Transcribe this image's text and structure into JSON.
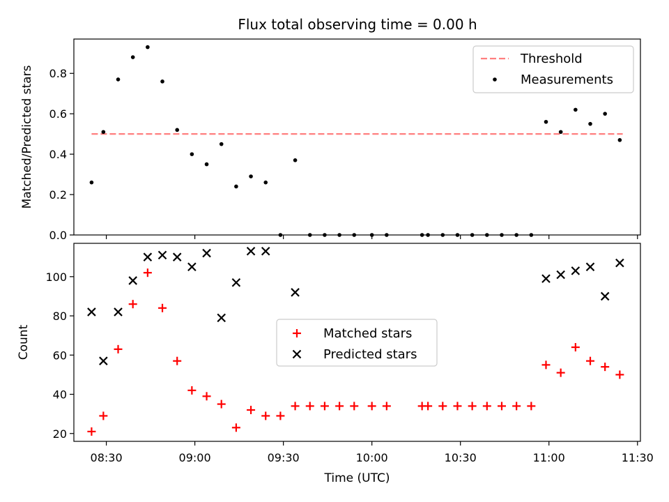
{
  "figure": {
    "title": "Flux total observing time = 0.00 h"
  },
  "colors": {
    "threshold": "#ff7f7f",
    "measurements": "#000000",
    "matched": "#ff0000",
    "predicted": "#000000"
  },
  "chart_data": [
    {
      "type": "scatter",
      "title": "Flux total observing time = 0.00 h",
      "xlabel": "",
      "ylabel": "Matched/Predicted stars",
      "xlim": [
        "08:19",
        "11:31"
      ],
      "ylim": [
        0,
        0.97
      ],
      "yticks": [
        0.0,
        0.2,
        0.4,
        0.6,
        0.8
      ],
      "grid": false,
      "legend_position": "upper right",
      "legend": [
        "Threshold",
        "Measurements"
      ],
      "threshold": {
        "name": "Threshold",
        "value": 0.5,
        "x": [
          "08:25",
          "11:25"
        ]
      },
      "series": [
        {
          "name": "Measurements",
          "x": [
            "08:25",
            "08:29",
            "08:34",
            "08:39",
            "08:44",
            "08:49",
            "08:54",
            "08:59",
            "09:04",
            "09:09",
            "09:14",
            "09:19",
            "09:24",
            "09:29",
            "09:34",
            "09:39",
            "09:44",
            "09:49",
            "09:54",
            "10:00",
            "10:05",
            "10:17",
            "10:19",
            "10:24",
            "10:29",
            "10:34",
            "10:39",
            "10:44",
            "10:49",
            "10:54",
            "10:59",
            "11:04",
            "11:09",
            "11:14",
            "11:19",
            "11:24"
          ],
          "values": [
            0.26,
            0.51,
            0.77,
            0.88,
            0.93,
            0.76,
            0.52,
            0.4,
            0.35,
            0.45,
            0.24,
            0.29,
            0.26,
            0.0,
            0.37,
            0.0,
            0.0,
            0.0,
            0.0,
            0.0,
            0.0,
            0.0,
            0.0,
            0.0,
            0.0,
            0.0,
            0.0,
            0.0,
            0.0,
            0.0,
            0.56,
            0.51,
            0.62,
            0.55,
            0.6,
            0.47
          ]
        }
      ]
    },
    {
      "type": "scatter",
      "xlabel": "Time (UTC)",
      "ylabel": "Count",
      "xlim": [
        "08:19",
        "11:31"
      ],
      "xticks": [
        "08:30",
        "09:00",
        "09:30",
        "10:00",
        "10:30",
        "11:00",
        "11:30"
      ],
      "ylim": [
        16,
        117
      ],
      "yticks": [
        20,
        40,
        60,
        80,
        100
      ],
      "grid": false,
      "legend_position": "center",
      "legend": [
        "Matched stars",
        "Predicted stars"
      ],
      "series": [
        {
          "name": "Matched stars",
          "marker": "+",
          "x": [
            "08:25",
            "08:29",
            "08:34",
            "08:39",
            "08:44",
            "08:49",
            "08:54",
            "08:59",
            "09:04",
            "09:09",
            "09:14",
            "09:19",
            "09:24",
            "09:29",
            "09:34",
            "09:39",
            "09:44",
            "09:49",
            "09:54",
            "10:00",
            "10:05",
            "10:17",
            "10:19",
            "10:24",
            "10:29",
            "10:34",
            "10:39",
            "10:44",
            "10:49",
            "10:54",
            "10:59",
            "11:04",
            "11:09",
            "11:14",
            "11:19",
            "11:24"
          ],
          "values": [
            21,
            29,
            63,
            86,
            102,
            84,
            57,
            42,
            39,
            35,
            23,
            32,
            29,
            29,
            34,
            34,
            34,
            34,
            34,
            34,
            34,
            34,
            34,
            34,
            34,
            34,
            34,
            34,
            34,
            34,
            55,
            51,
            64,
            57,
            54,
            50
          ]
        },
        {
          "name": "Predicted stars",
          "marker": "x",
          "x": [
            "08:25",
            "08:29",
            "08:34",
            "08:39",
            "08:44",
            "08:49",
            "08:54",
            "08:59",
            "09:04",
            "09:09",
            "09:14",
            "09:19",
            "09:24",
            "09:34",
            "10:59",
            "11:04",
            "11:09",
            "11:14",
            "11:19",
            "11:24"
          ],
          "values": [
            82,
            57,
            82,
            98,
            110,
            111,
            110,
            105,
            112,
            79,
            97,
            113,
            113,
            92,
            99,
            101,
            103,
            105,
            90,
            107
          ]
        }
      ]
    }
  ]
}
